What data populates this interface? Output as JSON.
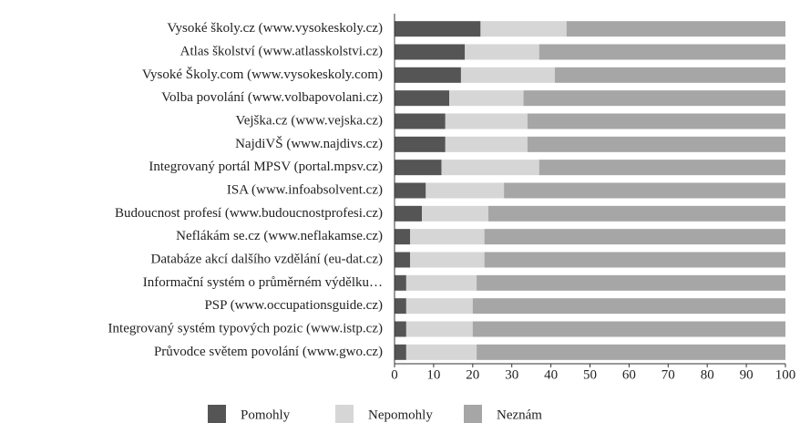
{
  "chart_data": {
    "type": "stacked-barh",
    "categories": [
      "Vysoké školy.cz (www.vysokeskoly.cz)",
      "Atlas školství (www.atlasskolstvi.cz)",
      "Vysoké Školy.com (www.vysokeskoly.com)",
      "Volba povolání (www.volbapovolani.cz)",
      "Vejška.cz (www.vejska.cz)",
      "NajdiVŠ (www.najdivs.cz)",
      "Integrovaný portál MPSV (portal.mpsv.cz)",
      "ISA (www.infoabsolvent.cz)",
      "Budoucnost profesí (www.budoucnostprofesi.cz)",
      "Neflákám se.cz (www.neflakamse.cz)",
      "Databáze akcí dalšího vzdělání (eu-dat.cz)",
      "Informační systém o průměrném výdělku…",
      "PSP (www.occupationsguide.cz)",
      "Integrovaný systém typových pozic (www.istp.cz)",
      "Průvodce světem povolání (www.gwo.cz)"
    ],
    "series": [
      {
        "name": "Pomohly",
        "color": "#555555",
        "values": [
          22,
          18,
          17,
          14,
          13,
          13,
          12,
          8,
          7,
          4,
          4,
          3,
          3,
          3,
          3
        ]
      },
      {
        "name": "Nepomohly",
        "color": "#d6d6d6",
        "values": [
          22,
          19,
          24,
          19,
          21,
          21,
          25,
          20,
          17,
          19,
          19,
          18,
          17,
          17,
          18
        ]
      },
      {
        "name": "Neznám",
        "color": "#a6a6a6",
        "values": [
          56,
          63,
          59,
          67,
          66,
          66,
          63,
          72,
          76,
          77,
          77,
          79,
          80,
          80,
          79
        ]
      }
    ],
    "xlim": [
      0,
      100
    ],
    "xticks": [
      0,
      10,
      20,
      30,
      40,
      50,
      60,
      70,
      80,
      90,
      100
    ],
    "legend": "bottom"
  }
}
